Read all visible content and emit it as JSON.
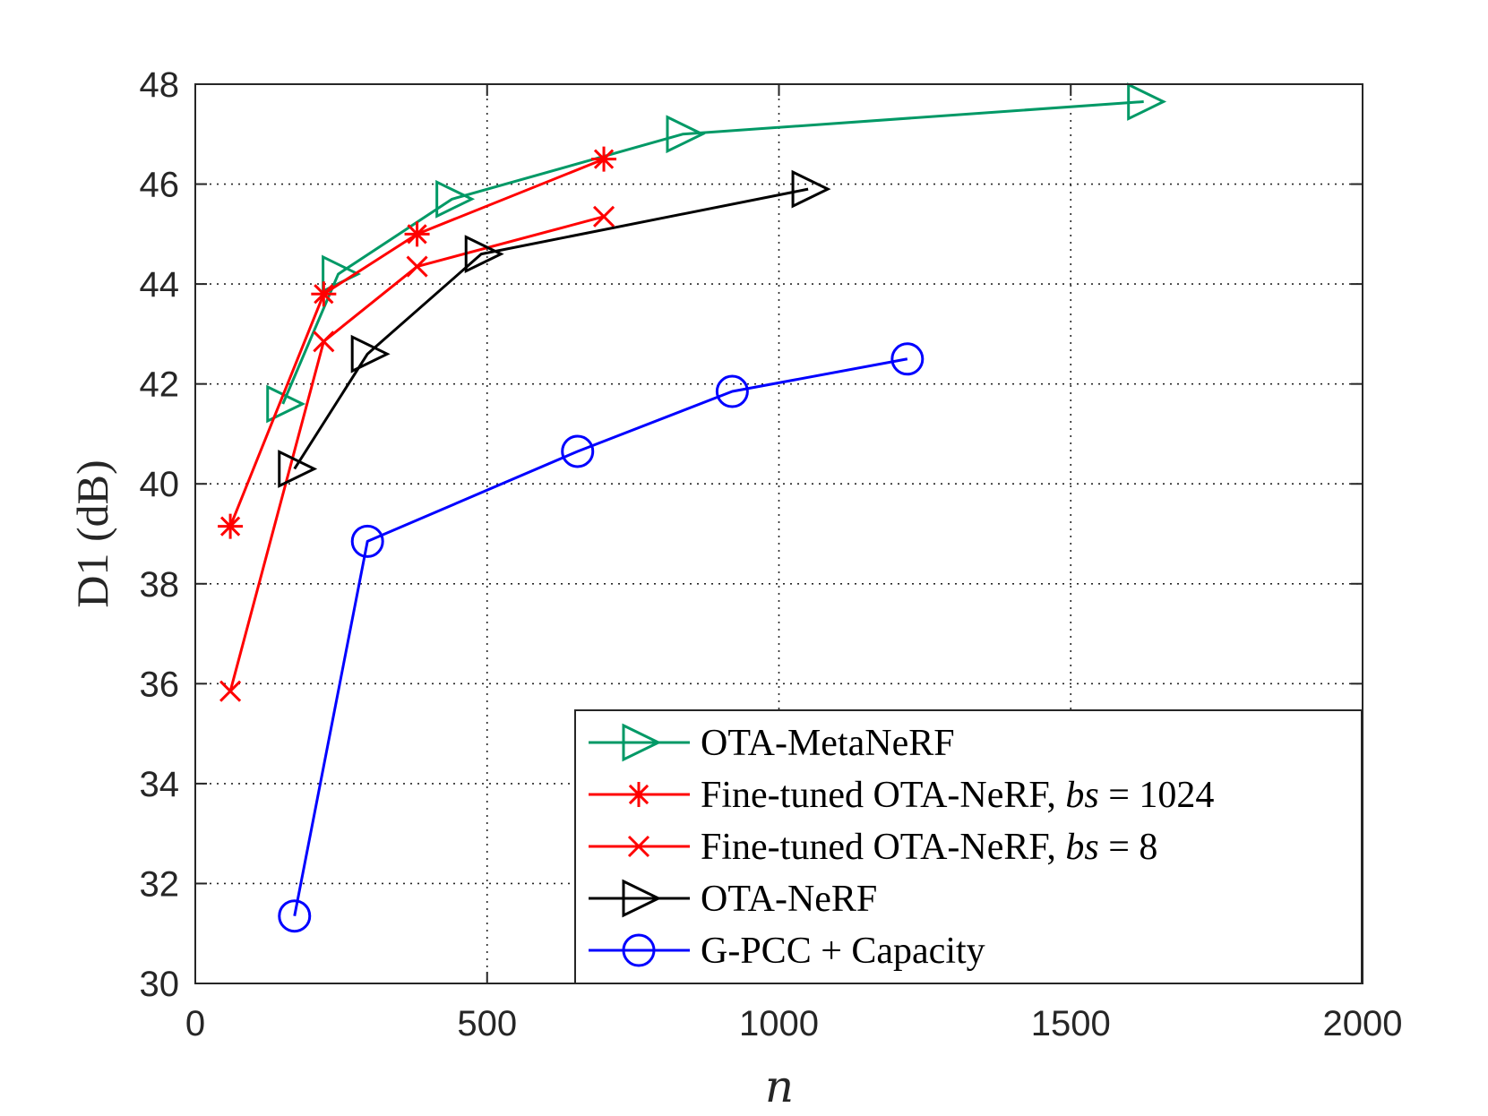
{
  "chart_data": {
    "type": "line",
    "xlabel": "n",
    "ylabel": "D1 (dB)",
    "xlim": [
      0,
      2000
    ],
    "ylim": [
      30,
      48
    ],
    "xticks": [
      0,
      500,
      1000,
      1500,
      2000
    ],
    "yticks": [
      30,
      32,
      34,
      36,
      38,
      40,
      42,
      44,
      46,
      48
    ],
    "grid": true,
    "legend_position": "bottom-right",
    "series": [
      {
        "name": "OTA-MetaNeRF",
        "color": "#009966",
        "marker": "triangle-right",
        "x": [
          150,
          245,
          440,
          835,
          1625
        ],
        "y": [
          41.6,
          44.2,
          45.7,
          47.0,
          47.65
        ]
      },
      {
        "name": "Fine-tuned OTA-NeRF, bs = 1024",
        "legend_prefix": "Fine-tuned OTA-NeRF, ",
        "legend_var": "bs",
        "legend_suffix": " = 1024",
        "color": "#ff0000",
        "marker": "asterisk",
        "x": [
          60,
          220,
          380,
          700
        ],
        "y": [
          39.15,
          43.8,
          45.0,
          46.5
        ]
      },
      {
        "name": "Fine-tuned OTA-NeRF, bs = 8",
        "legend_prefix": "Fine-tuned OTA-NeRF, ",
        "legend_var": "bs",
        "legend_suffix": " = 8",
        "color": "#ff0000",
        "marker": "x",
        "x": [
          60,
          220,
          380,
          700
        ],
        "y": [
          35.85,
          42.85,
          44.35,
          45.35
        ]
      },
      {
        "name": "OTA-NeRF",
        "color": "#000000",
        "marker": "triangle-right",
        "x": [
          170,
          295,
          490,
          1050
        ],
        "y": [
          40.3,
          42.6,
          44.6,
          45.9
        ]
      },
      {
        "name": "G-PCC + Capacity",
        "color": "#0000ff",
        "marker": "circle",
        "x": [
          170,
          295,
          655,
          920,
          1220
        ],
        "y": [
          31.35,
          38.85,
          40.65,
          41.85,
          42.5
        ]
      }
    ]
  }
}
